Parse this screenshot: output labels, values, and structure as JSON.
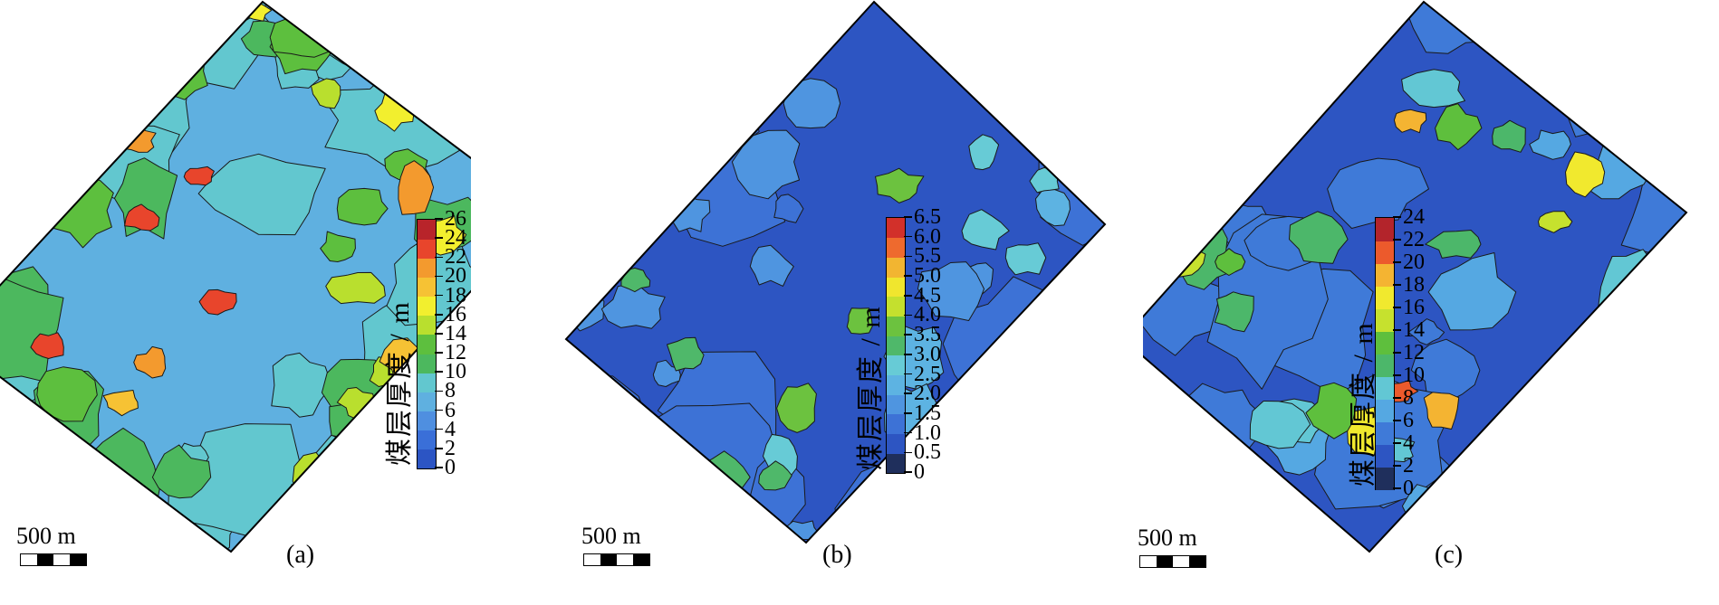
{
  "panels": [
    {
      "label": "(a)",
      "scale_text": "500 m",
      "colorbar": {
        "title": "煤层厚度 / m",
        "ticks": [
          "0",
          "2",
          "4",
          "6",
          "8",
          "10",
          "12",
          "14",
          "16",
          "18",
          "20",
          "22",
          "24",
          "26"
        ],
        "colors": [
          "#2c55c4",
          "#3a6fd8",
          "#4f8fe0",
          "#5fb0e0",
          "#62c7cf",
          "#4cb85e",
          "#5dbf3e",
          "#b9df2e",
          "#f2ef2e",
          "#f6c234",
          "#f39a2e",
          "#e8452c",
          "#b8242a"
        ]
      },
      "map_palette": [
        "#4f8fe0",
        "#5fb0e0",
        "#62c7cf",
        "#4cb85e",
        "#5dbf3e",
        "#b9df2e",
        "#f2ef2e",
        "#f6c234",
        "#f39a2e",
        "#e8452c"
      ]
    },
    {
      "label": "(b)",
      "scale_text": "500 m",
      "colorbar": {
        "title": "煤层厚度 / m",
        "ticks": [
          "0",
          "0.5",
          "1.0",
          "1.5",
          "2.0",
          "2.5",
          "3.0",
          "3.5",
          "4.0",
          "4.5",
          "5.0",
          "5.5",
          "6.0",
          "6.5"
        ],
        "colors": [
          "#1f2f5c",
          "#2d55c2",
          "#3d72d6",
          "#4f95e0",
          "#5db3e2",
          "#67cbd6",
          "#4fb86a",
          "#6cc23f",
          "#c4e02e",
          "#f0e62e",
          "#f2b531",
          "#ee6a2e",
          "#d2302a"
        ]
      },
      "map_palette": [
        "#1f2f5c",
        "#2d55c2",
        "#3d72d6",
        "#4f95e0",
        "#5db3e2",
        "#67cbd6",
        "#4fb86a",
        "#6cc23f"
      ]
    },
    {
      "label": "(c)",
      "scale_text": "500 m",
      "colorbar": {
        "title": "煤层厚度 / m",
        "ticks": [
          "0",
          "2",
          "4",
          "6",
          "8",
          "10",
          "12",
          "14",
          "16",
          "18",
          "20",
          "22",
          "24"
        ],
        "colors": [
          "#1f2f5c",
          "#2d55c2",
          "#3f7ad8",
          "#55a8e2",
          "#62c7d4",
          "#4cb76a",
          "#5ebf3d",
          "#c6e12e",
          "#f1e92e",
          "#f4b432",
          "#ec5a2c",
          "#b3242b"
        ]
      },
      "map_palette": [
        "#1f2f5c",
        "#2d55c2",
        "#3f7ad8",
        "#55a8e2",
        "#62c7d4",
        "#4cb76a",
        "#5ebf3d",
        "#c6e12e",
        "#f1e92e",
        "#f4b432",
        "#ec5a2c"
      ]
    }
  ]
}
